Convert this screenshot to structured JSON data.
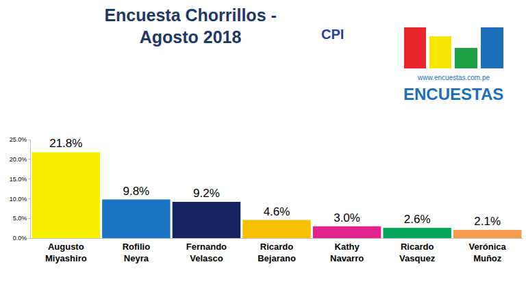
{
  "chart_data": {
    "type": "bar",
    "title": "Encuesta Chorrillos - Agosto 2018",
    "annotations": [
      "CPI",
      "www.encuestas.com.pe",
      "ENCUESTAS"
    ],
    "categories": [
      "Augusto Miyashiro",
      "Rofilio Neyra",
      "Fernando Velasco",
      "Ricardo Bejarano",
      "Kathy Navarro",
      "Ricardo Vasquez",
      "Verónica Muñoz"
    ],
    "values": [
      21.8,
      9.8,
      9.2,
      4.6,
      3.0,
      2.6,
      2.1
    ],
    "value_labels": [
      "21.8%",
      "9.8%",
      "9.2%",
      "4.6%",
      "3.0%",
      "2.6%",
      "2.1%"
    ],
    "colors": [
      "#f7ee00",
      "#1b75c4",
      "#14245e",
      "#f6c100",
      "#e2238d",
      "#00a65a",
      "#f39a4c"
    ],
    "data_labels": true,
    "ylim": [
      0,
      25
    ],
    "yticks": [
      {
        "value": 0,
        "label": "0.0%"
      },
      {
        "value": 5,
        "label": "5.0%"
      },
      {
        "value": 10,
        "label": "10.0%"
      },
      {
        "value": 15,
        "label": "15.0%"
      },
      {
        "value": 20,
        "label": "20.0%"
      },
      {
        "value": 25,
        "label": "25.0%"
      }
    ],
    "grid": false
  }
}
